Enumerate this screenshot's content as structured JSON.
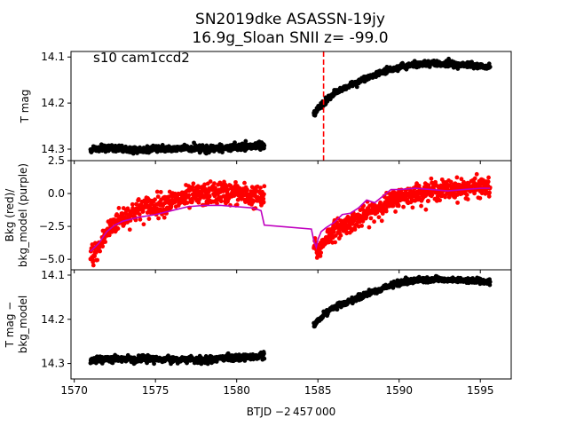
{
  "figure": {
    "title_line1": "SN2019dke  ASASSN-19jy",
    "title_line2": "16.9g_Sloan SNII z= -99.0",
    "annotation": "s10 cam1ccd2",
    "xlabel": "BTJD −2 457 000"
  },
  "chart_data": [
    {
      "type": "scatter",
      "panel": "top",
      "ylabel": "T mag",
      "xlim": [
        1569.8,
        1596.9
      ],
      "ylim": [
        14.325,
        14.088
      ],
      "y_inverted": true,
      "x_ticks": [
        1570,
        1575,
        1580,
        1585,
        1590,
        1595
      ],
      "y_ticks": [
        14.1,
        14.2,
        14.3
      ],
      "y_tick_labels": [
        "14.1",
        "14.2",
        "14.3"
      ],
      "vline": {
        "x": 1585.35,
        "color": "#ff0000",
        "style": "dashed"
      },
      "series": [
        {
          "color": "#000000",
          "segments": [
            {
              "x": [
                1571.0,
                1572.0,
                1573.0,
                1574.0,
                1575.0,
                1576.0,
                1577.0,
                1578.0,
                1579.0,
                1580.0,
                1581.0,
                1581.7
              ],
              "y": [
                14.302,
                14.298,
                14.3,
                14.301,
                14.299,
                14.3,
                14.298,
                14.3,
                14.297,
                14.296,
                14.294,
                14.293
              ],
              "scatter": 0.006
            },
            {
              "x": [
                1584.75,
                1585.0,
                1585.5,
                1586.0,
                1587.0,
                1588.0,
                1589.0,
                1590.0,
                1591.0,
                1592.0,
                1593.0,
                1594.0,
                1595.0,
                1595.6
              ],
              "y": [
                14.225,
                14.212,
                14.195,
                14.178,
                14.162,
                14.145,
                14.132,
                14.122,
                14.117,
                14.114,
                14.116,
                14.116,
                14.119,
                14.121
              ],
              "scatter": 0.005
            }
          ]
        }
      ]
    },
    {
      "type": "line",
      "panel": "middle",
      "ylabel": "Bkg (red)/\nbkg_model (purple)",
      "xlim": [
        1569.8,
        1596.9
      ],
      "ylim": [
        -5.8,
        2.5
      ],
      "x_ticks": [
        1570,
        1575,
        1580,
        1585,
        1590,
        1595
      ],
      "y_ticks": [
        2.5,
        0.0,
        -2.5,
        -5.0
      ],
      "y_tick_labels": [
        "2.5",
        "0.0",
        "−2.5",
        "−5.0"
      ],
      "series": [
        {
          "kind": "scatter",
          "color": "#ff0000",
          "segments": [
            {
              "x": [
                1571.0,
                1571.5,
                1572.0,
                1572.5,
                1573.0,
                1574.0,
                1575.0,
                1576.0,
                1577.0,
                1578.0,
                1579.0,
                1580.0,
                1581.0,
                1581.7
              ],
              "y": [
                -4.8,
                -4.2,
                -3.0,
                -2.2,
                -1.8,
                -1.2,
                -0.9,
                -0.6,
                -0.3,
                -0.1,
                0.1,
                0.0,
                -0.2,
                -0.4
              ],
              "scatter": 0.7
            },
            {
              "x": [
                1584.75,
                1585.0,
                1585.5,
                1586.0,
                1587.0,
                1588.0,
                1589.0,
                1590.0,
                1591.0,
                1592.0,
                1593.0,
                1594.0,
                1595.0,
                1595.6
              ],
              "y": [
                -3.8,
                -4.5,
                -3.4,
                -2.8,
                -2.2,
                -1.6,
                -0.9,
                -0.3,
                0.0,
                0.2,
                0.3,
                0.4,
                0.5,
                0.5
              ],
              "scatter": 0.6
            }
          ]
        },
        {
          "kind": "line",
          "color": "#bf00bf",
          "x": [
            1571.0,
            1571.5,
            1572.0,
            1572.5,
            1573.0,
            1574.0,
            1575.0,
            1576.0,
            1577.0,
            1578.0,
            1579.0,
            1580.0,
            1581.0,
            1581.5,
            1581.7,
            1584.6,
            1584.75,
            1584.9,
            1585.0,
            1585.2,
            1585.5,
            1586.0,
            1586.5,
            1587.0,
            1587.5,
            1588.0,
            1588.5,
            1589.0,
            1589.5,
            1590.0,
            1591.0,
            1592.0,
            1593.0,
            1594.0,
            1595.0,
            1595.6
          ],
          "y": [
            -4.4,
            -3.8,
            -2.9,
            -2.4,
            -2.1,
            -1.8,
            -1.6,
            -1.3,
            -1.0,
            -0.9,
            -0.9,
            -1.0,
            -1.1,
            -1.3,
            -2.4,
            -2.7,
            -3.6,
            -4.1,
            -3.5,
            -2.9,
            -2.6,
            -2.2,
            -1.6,
            -1.5,
            -1.1,
            -0.5,
            -0.7,
            -0.2,
            0.3,
            0.3,
            0.4,
            0.3,
            0.2,
            0.3,
            0.4,
            0.4
          ]
        }
      ]
    },
    {
      "type": "scatter",
      "panel": "bottom",
      "ylabel": "T mag −\nbkg_model",
      "xlim": [
        1569.8,
        1596.9
      ],
      "ylim": [
        14.335,
        14.088
      ],
      "y_inverted": true,
      "x_ticks": [
        1570,
        1575,
        1580,
        1585,
        1590,
        1595
      ],
      "x_tick_labels": [
        "1570",
        "1575",
        "1580",
        "1585",
        "1590",
        "1595"
      ],
      "y_ticks": [
        14.1,
        14.2,
        14.3
      ],
      "y_tick_labels": [
        "14.1",
        "14.2",
        "14.3"
      ],
      "series": [
        {
          "color": "#000000",
          "segments": [
            {
              "x": [
                1571.0,
                1572.0,
                1573.0,
                1574.0,
                1575.0,
                1576.0,
                1577.0,
                1578.0,
                1579.0,
                1580.0,
                1581.0,
                1581.7
              ],
              "y": [
                14.292,
                14.289,
                14.29,
                14.291,
                14.29,
                14.29,
                14.291,
                14.292,
                14.289,
                14.287,
                14.285,
                14.283
              ],
              "scatter": 0.006
            },
            {
              "x": [
                1584.75,
                1585.0,
                1585.5,
                1586.0,
                1587.0,
                1588.0,
                1589.0,
                1590.0,
                1591.0,
                1592.0,
                1593.0,
                1594.0,
                1595.0,
                1595.6
              ],
              "y": [
                14.215,
                14.2,
                14.185,
                14.172,
                14.158,
                14.143,
                14.13,
                14.118,
                14.112,
                14.11,
                14.111,
                14.112,
                14.114,
                14.116
              ],
              "scatter": 0.005
            }
          ]
        }
      ]
    }
  ]
}
